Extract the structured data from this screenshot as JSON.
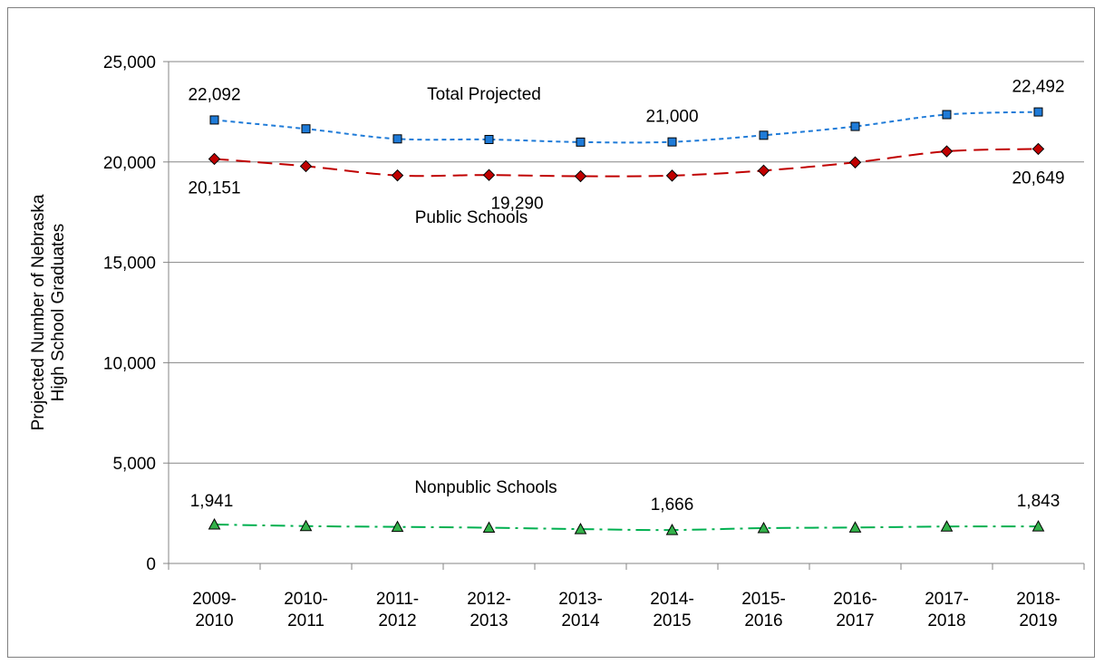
{
  "chart_data": {
    "type": "line",
    "title": "",
    "xlabel": "",
    "ylabel": "Projected Number of Nebraska High School Graduates",
    "ylabel_lines": [
      "Projected Number of Nebraska",
      "High School Graduates"
    ],
    "ylim": [
      0,
      25000
    ],
    "yticks": [
      0,
      5000,
      10000,
      15000,
      20000,
      25000
    ],
    "ytick_labels": [
      "0",
      "5,000",
      "10,000",
      "15,000",
      "20,000",
      "25,000"
    ],
    "grid": true,
    "legend": "none",
    "categories": [
      "2009-2010",
      "2010-2011",
      "2011-2012",
      "2012-2013",
      "2013-2014",
      "2014-2015",
      "2015-2016",
      "2016-2017",
      "2017-2018",
      "2018-2019"
    ],
    "category_lines": [
      [
        "2009-",
        "2010"
      ],
      [
        "2010-",
        "2011"
      ],
      [
        "2011-",
        "2012"
      ],
      [
        "2012-",
        "2013"
      ],
      [
        "2013-",
        "2014"
      ],
      [
        "2014-",
        "2015"
      ],
      [
        "2015-",
        "2016"
      ],
      [
        "2016-",
        "2017"
      ],
      [
        "2017-",
        "2018"
      ],
      [
        "2018-",
        "2019"
      ]
    ],
    "series": [
      {
        "name": "Total Projected",
        "color": "#1f7bd8",
        "marker": "square",
        "values": [
          22092,
          21650,
          21150,
          21120,
          20990,
          21000,
          21330,
          21770,
          22360,
          22492
        ],
        "labels": [
          {
            "index": 0,
            "text": "22,092"
          },
          {
            "index": 5,
            "text": "21,000"
          },
          {
            "index": 9,
            "text": "22,492"
          }
        ]
      },
      {
        "name": "Public Schools",
        "color": "#c00000",
        "marker": "diamond",
        "values": [
          20151,
          19790,
          19330,
          19350,
          19290,
          19320,
          19570,
          19980,
          20530,
          20649
        ],
        "labels": [
          {
            "index": 0,
            "text": "20,151"
          },
          {
            "index": 4,
            "text": "19,290"
          },
          {
            "index": 9,
            "text": "20,649"
          }
        ]
      },
      {
        "name": "Nonpublic Schools",
        "color": "#00b050",
        "marker": "triangle",
        "values": [
          1941,
          1860,
          1820,
          1780,
          1710,
          1666,
          1760,
          1790,
          1840,
          1843
        ],
        "labels": [
          {
            "index": 0,
            "text": "1,941"
          },
          {
            "index": 5,
            "text": "1,666"
          },
          {
            "index": 9,
            "text": "1,843"
          }
        ]
      }
    ]
  }
}
